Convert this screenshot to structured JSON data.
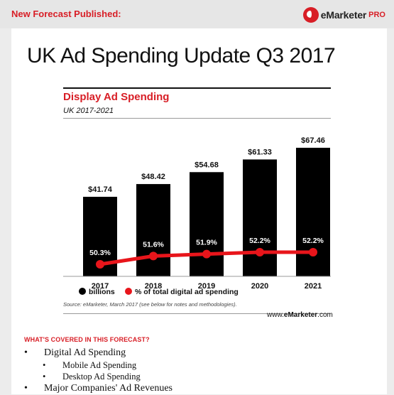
{
  "header": {
    "headline": "New Forecast Published:",
    "brand_name": "eMarketer",
    "brand_pro": "PRO",
    "brand_color": "#d81e26"
  },
  "page_title": "UK Ad Spending Update Q3 2017",
  "chart_data": {
    "type": "bar",
    "title": "Display Ad Spending",
    "subtitle": "UK 2017-2021",
    "categories": [
      "2017",
      "2018",
      "2019",
      "2020",
      "2021"
    ],
    "series": [
      {
        "name": "billions",
        "type": "bar",
        "values": [
          41.74,
          48.42,
          54.68,
          61.33,
          67.46
        ],
        "labels": [
          "$41.74",
          "$48.42",
          "$54.68",
          "$61.33",
          "$67.46"
        ],
        "color": "#000000"
      },
      {
        "name": "% of total digital ad spending",
        "type": "line",
        "values": [
          50.3,
          51.6,
          51.9,
          52.2,
          52.2
        ],
        "labels": [
          "50.3%",
          "51.6%",
          "51.9%",
          "52.2%",
          "52.2%"
        ],
        "color": "#e8151b"
      }
    ],
    "legend_position": "bottom-left",
    "grid": false
  },
  "source": "Source: eMarketer, March 2017 (see below for notes and methodologies).",
  "site": {
    "prefix": "www.",
    "brand": "eMarketer",
    "suffix": ".com"
  },
  "covered": {
    "title": "WHAT'S COVERED IN THIS FORECAST?",
    "items": [
      {
        "label": "Digital Ad Spending",
        "level": 1
      },
      {
        "label": "Mobile Ad Spending",
        "level": 2
      },
      {
        "label": "Desktop Ad Spending",
        "level": 2
      },
      {
        "label": "Major Companies' Ad Revenues",
        "level": 1
      }
    ]
  }
}
